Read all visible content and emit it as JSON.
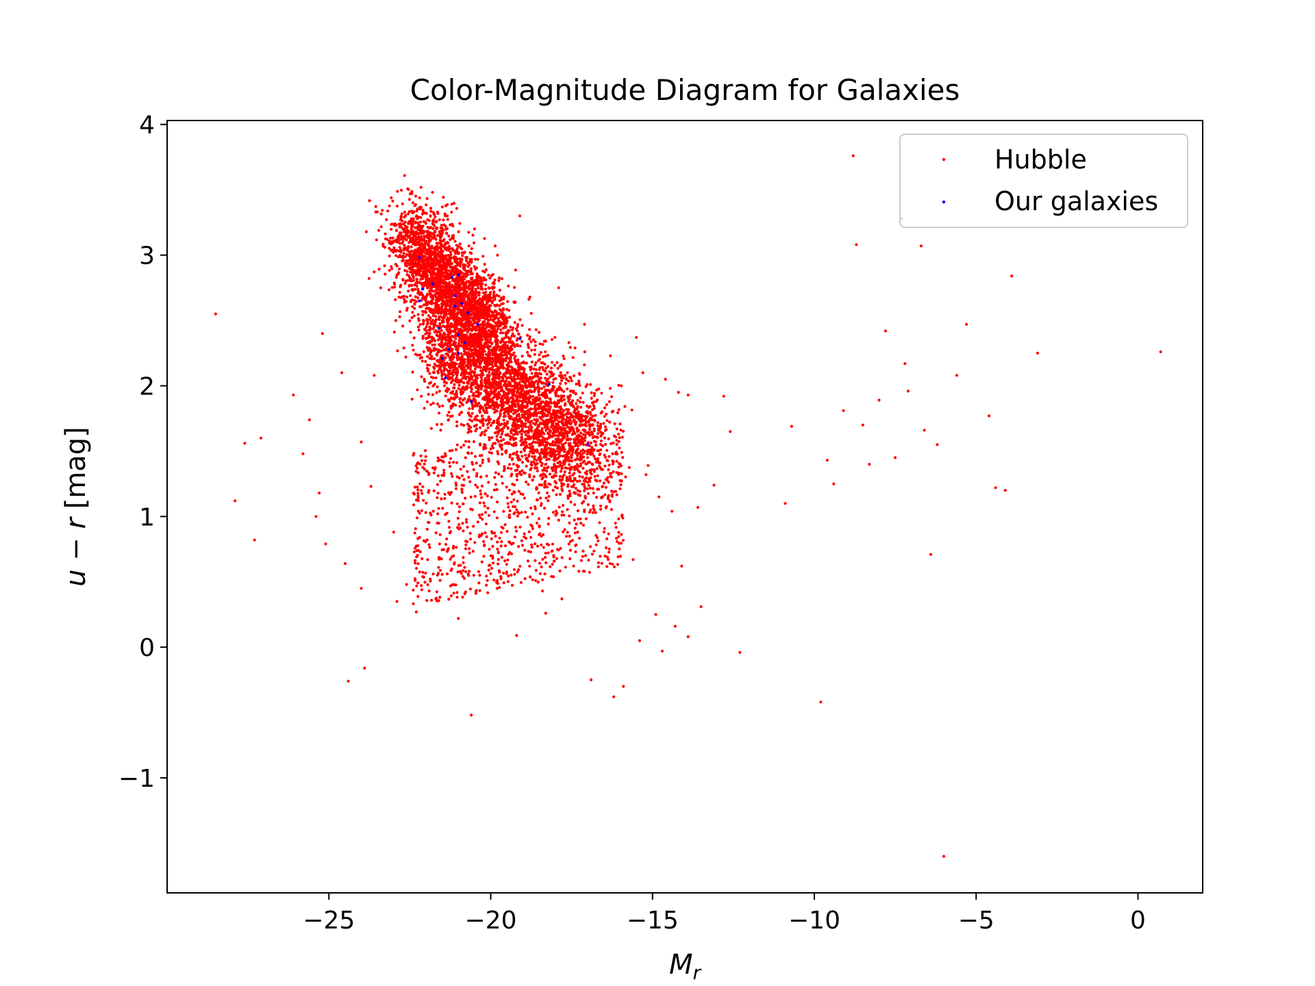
{
  "chart_data": {
    "type": "scatter",
    "title": "Color-Magnitude Diagram for Galaxies",
    "xlabel": "M",
    "xlabel_sub": "r",
    "ylabel_var1": "u",
    "ylabel_op": "−",
    "ylabel_var2": "r",
    "ylabel_unit": "[mag]",
    "xlim": [
      -30,
      2
    ],
    "ylim": [
      -1.88,
      4.03
    ],
    "xticks": [
      -25,
      -20,
      -15,
      -10,
      -5,
      0
    ],
    "xtick_labels": [
      "−25",
      "−20",
      "−15",
      "−10",
      "−5",
      "0"
    ],
    "yticks": [
      -1,
      0,
      1,
      2,
      3,
      4
    ],
    "ytick_labels": [
      "−1",
      "0",
      "1",
      "2",
      "3",
      "4"
    ],
    "grid": false,
    "legend_position": "top-right",
    "series": [
      {
        "name": "Hubble",
        "color": "#ff0000",
        "marker": "dot",
        "cluster_description": "dense cloud of several thousand galaxies: red sequence near M_r -22..-20, u-r 2.5..3.4; blue cloud M_r -21..-17, u-r 1.2..2.0; sparse outliers",
        "points": [
          [
            -28.5,
            2.55
          ],
          [
            -27.6,
            1.56
          ],
          [
            -27.3,
            0.82
          ],
          [
            -27.1,
            1.6
          ],
          [
            -27.9,
            1.12
          ],
          [
            -26.1,
            1.93
          ],
          [
            -25.8,
            1.48
          ],
          [
            -25.6,
            1.74
          ],
          [
            -25.4,
            1.0
          ],
          [
            -25.3,
            1.18
          ],
          [
            -25.2,
            2.4
          ],
          [
            -25.1,
            0.79
          ],
          [
            -24.6,
            2.1
          ],
          [
            -24.5,
            0.64
          ],
          [
            -24.4,
            -0.26
          ],
          [
            -24.0,
            1.57
          ],
          [
            -24.0,
            0.45
          ],
          [
            -23.9,
            -0.16
          ],
          [
            -23.7,
            1.23
          ],
          [
            -23.6,
            2.08
          ],
          [
            -23.4,
            2.75
          ],
          [
            -23.0,
            0.88
          ],
          [
            -22.9,
            0.35
          ],
          [
            -22.6,
            0.48
          ],
          [
            -22.3,
            0.27
          ],
          [
            -21.0,
            0.22
          ],
          [
            -20.6,
            -0.52
          ],
          [
            -19.2,
            0.09
          ],
          [
            -18.3,
            0.26
          ],
          [
            -17.8,
            0.37
          ],
          [
            -16.9,
            -0.25
          ],
          [
            -16.2,
            -0.38
          ],
          [
            -15.9,
            -0.3
          ],
          [
            -15.6,
            0.67
          ],
          [
            -15.4,
            0.05
          ],
          [
            -14.9,
            0.25
          ],
          [
            -14.7,
            -0.03
          ],
          [
            -14.3,
            0.16
          ],
          [
            -14.1,
            0.62
          ],
          [
            -13.9,
            0.08
          ],
          [
            -13.5,
            0.31
          ],
          [
            -12.3,
            -0.04
          ],
          [
            -12.8,
            1.92
          ],
          [
            -12.6,
            1.65
          ],
          [
            -13.1,
            1.24
          ],
          [
            -10.9,
            1.1
          ],
          [
            -10.7,
            1.69
          ],
          [
            -9.8,
            -0.42
          ],
          [
            -9.6,
            1.43
          ],
          [
            -9.4,
            1.25
          ],
          [
            -9.1,
            1.81
          ],
          [
            -8.8,
            3.76
          ],
          [
            -8.7,
            3.08
          ],
          [
            -8.5,
            1.7
          ],
          [
            -8.3,
            1.4
          ],
          [
            -8.0,
            1.89
          ],
          [
            -7.8,
            2.42
          ],
          [
            -7.5,
            1.45
          ],
          [
            -7.3,
            3.28
          ],
          [
            -7.2,
            2.17
          ],
          [
            -7.1,
            1.96
          ],
          [
            -6.7,
            3.07
          ],
          [
            -6.6,
            1.66
          ],
          [
            -6.4,
            0.71
          ],
          [
            -6.2,
            1.55
          ],
          [
            -6.0,
            -1.6
          ],
          [
            -5.6,
            2.08
          ],
          [
            -5.3,
            2.47
          ],
          [
            -4.6,
            1.77
          ],
          [
            -4.4,
            1.22
          ],
          [
            -4.1,
            1.2
          ],
          [
            -3.9,
            2.84
          ],
          [
            -3.1,
            2.25
          ],
          [
            0.7,
            2.26
          ],
          [
            -22.4,
            3.4
          ],
          [
            -21.8,
            3.48
          ],
          [
            -21.2,
            3.39
          ],
          [
            -20.5,
            3.2
          ],
          [
            -19.1,
            3.3
          ],
          [
            -17.9,
            2.75
          ],
          [
            -17.1,
            2.47
          ],
          [
            -16.3,
            2.23
          ],
          [
            -15.5,
            2.37
          ],
          [
            -15.3,
            2.1
          ],
          [
            -14.6,
            2.05
          ],
          [
            -14.2,
            1.95
          ],
          [
            -13.9,
            1.93
          ],
          [
            -16.6,
            1.51
          ],
          [
            -16.0,
            1.4
          ],
          [
            -15.2,
            1.32
          ],
          [
            -14.8,
            1.15
          ],
          [
            -14.4,
            1.04
          ],
          [
            -13.6,
            1.07
          ],
          [
            -16.8,
            1.05
          ],
          [
            -18.8,
            0.62
          ],
          [
            -18.4,
            0.43
          ],
          [
            -19.8,
            0.51
          ]
        ]
      },
      {
        "name": "Our galaxies",
        "color": "#0000ff",
        "marker": "dot",
        "points": [
          [
            -22.2,
            2.98
          ],
          [
            -22.1,
            2.74
          ],
          [
            -21.8,
            2.78
          ],
          [
            -21.2,
            2.83
          ],
          [
            -21.0,
            2.85
          ],
          [
            -21.1,
            2.69
          ],
          [
            -20.9,
            2.63
          ],
          [
            -21.1,
            2.61
          ],
          [
            -20.7,
            2.56
          ],
          [
            -20.4,
            2.47
          ],
          [
            -21.6,
            2.44
          ],
          [
            -21.0,
            2.39
          ],
          [
            -20.8,
            2.33
          ],
          [
            -21.3,
            2.28
          ],
          [
            -21.0,
            2.25
          ],
          [
            -21.5,
            2.21
          ],
          [
            -21.4,
            2.06
          ],
          [
            -20.6,
            1.88
          ],
          [
            -19.1,
            2.36
          ],
          [
            -18.2,
            2.01
          ],
          [
            -17.0,
            1.55
          ],
          [
            -22.2,
            2.65
          ]
        ]
      }
    ]
  },
  "legend": {
    "entries": [
      "Hubble",
      "Our galaxies"
    ]
  }
}
